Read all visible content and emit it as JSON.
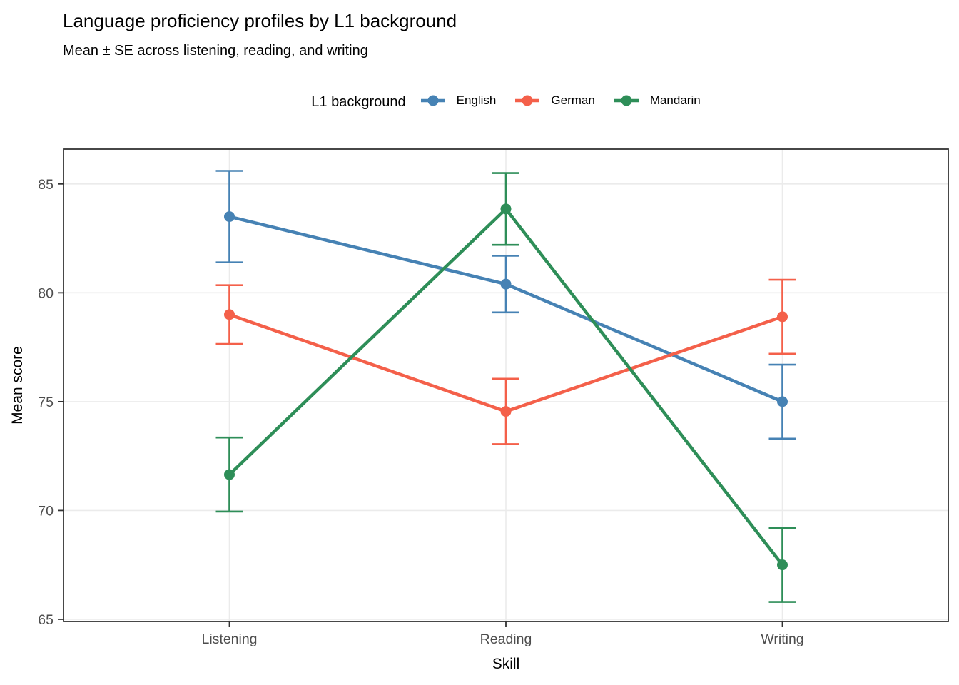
{
  "title": "Language proficiency profiles by L1 background",
  "subtitle": "Mean ± SE across listening, reading, and writing",
  "legend": {
    "title": "L1 background",
    "position": "top-center"
  },
  "colors": {
    "grid": "#EBEBEB",
    "panel_border": "#333333",
    "tick_text": "#4D4D4D",
    "axis_title_text": "#000000"
  },
  "chart_data": {
    "type": "line",
    "categories": [
      "Listening",
      "Reading",
      "Writing"
    ],
    "xlabel": "Skill",
    "ylabel": "Mean score",
    "ylim": [
      64.9,
      86.6
    ],
    "yticks": [
      65,
      70,
      75,
      80,
      85
    ],
    "grid": "major gridlines only, horizontal at yticks and vertical at categories",
    "legend_position": "top",
    "error_bars": "mean ± SE",
    "series": [
      {
        "name": "English",
        "color": "#4682B4",
        "means": [
          83.5,
          80.4,
          75.0
        ],
        "se": [
          2.1,
          1.3,
          1.7
        ]
      },
      {
        "name": "German",
        "color": "#F4604A",
        "means": [
          79.0,
          74.55,
          78.9
        ],
        "se": [
          1.35,
          1.5,
          1.7
        ]
      },
      {
        "name": "Mandarin",
        "color": "#2E8E58",
        "means": [
          71.65,
          83.85,
          67.5
        ],
        "se": [
          1.7,
          1.65,
          1.7
        ]
      }
    ]
  }
}
